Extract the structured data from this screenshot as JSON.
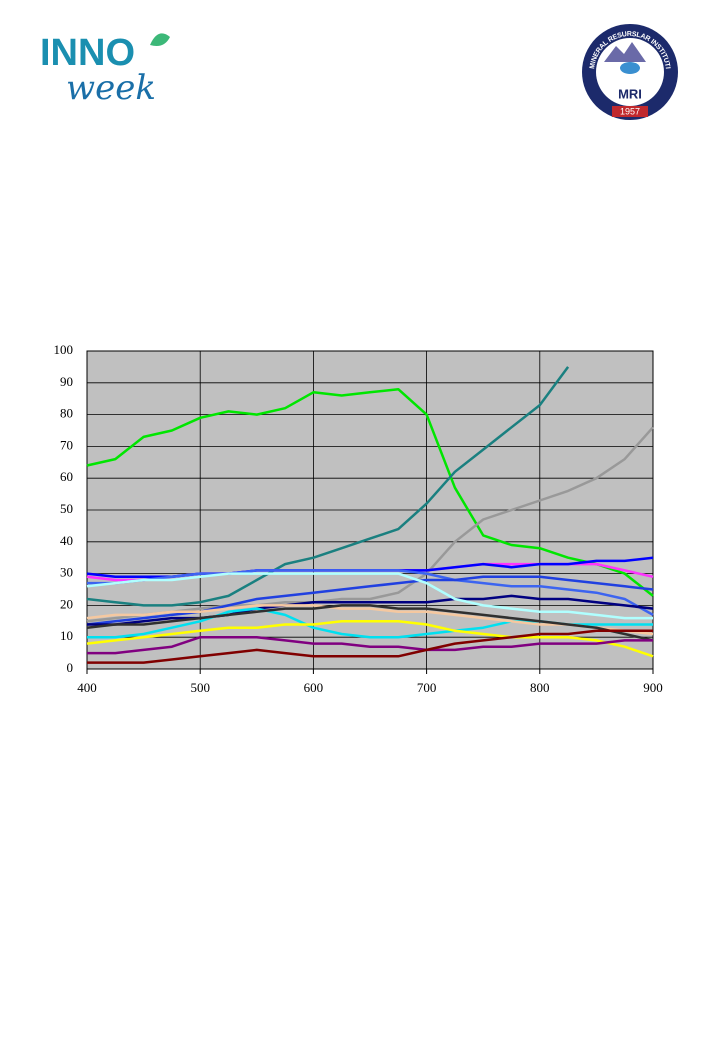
{
  "header": {
    "left_logo": {
      "line1": "INNO",
      "line2": "week"
    },
    "right_logo": {
      "ring_text": "MINERAL RESURSLAR INSTITUTI",
      "abbr": "MRI",
      "year": "1957"
    }
  },
  "chart_data": {
    "type": "line",
    "x": [
      400,
      425,
      450,
      475,
      500,
      525,
      550,
      575,
      600,
      625,
      650,
      675,
      700,
      725,
      750,
      775,
      800,
      825,
      850,
      875,
      900
    ],
    "xlim": [
      400,
      900
    ],
    "xticks": [
      400,
      500,
      600,
      700,
      800,
      900
    ],
    "ylim": [
      0,
      100
    ],
    "yticks": [
      0,
      10,
      20,
      30,
      40,
      50,
      60,
      70,
      80,
      90,
      100
    ],
    "grid": true,
    "plot_background": "#c0c0c0",
    "series": [
      {
        "color": "#00e600",
        "values": [
          64,
          66,
          73,
          75,
          79,
          81,
          80,
          82,
          87,
          86,
          87,
          88,
          80,
          57,
          42,
          39,
          38,
          35,
          33,
          30,
          23
        ]
      },
      {
        "color": "#1a8080",
        "values": [
          22,
          21,
          20,
          20,
          21,
          23,
          28,
          33,
          35,
          38,
          41,
          44,
          52,
          62,
          69,
          76,
          83,
          95,
          null,
          null,
          null
        ]
      },
      {
        "color": "#999999",
        "values": [
          15,
          16,
          17,
          18,
          19,
          20,
          20,
          21,
          21,
          22,
          22,
          24,
          30,
          40,
          47,
          50,
          53,
          56,
          60,
          66,
          76
        ]
      },
      {
        "color": "#ff33ff",
        "values": [
          29,
          28,
          28,
          29,
          30,
          30,
          31,
          31,
          31,
          31,
          31,
          31,
          31,
          32,
          33,
          33,
          33,
          33,
          33,
          31,
          29
        ]
      },
      {
        "color": "#0000ff",
        "values": [
          30,
          29,
          29,
          29,
          30,
          30,
          31,
          31,
          31,
          31,
          31,
          31,
          31,
          32,
          33,
          32,
          33,
          33,
          34,
          34,
          35
        ]
      },
      {
        "color": "#3c64f0",
        "values": [
          27,
          27,
          28,
          29,
          30,
          30,
          31,
          31,
          31,
          31,
          31,
          31,
          30,
          28,
          27,
          26,
          26,
          25,
          24,
          22,
          17
        ]
      },
      {
        "color": "#2040e0",
        "values": [
          14,
          15,
          16,
          17,
          18,
          20,
          22,
          23,
          24,
          25,
          26,
          27,
          28,
          28,
          29,
          29,
          29,
          28,
          27,
          26,
          25
        ]
      },
      {
        "color": "#000080",
        "values": [
          14,
          14,
          15,
          16,
          16,
          17,
          19,
          20,
          21,
          21,
          21,
          21,
          21,
          22,
          22,
          23,
          22,
          22,
          21,
          20,
          19
        ]
      },
      {
        "color": "#b0ffff",
        "values": [
          26,
          27,
          28,
          28,
          29,
          30,
          30,
          30,
          30,
          30,
          30,
          30,
          27,
          22,
          20,
          19,
          18,
          18,
          17,
          16,
          16
        ]
      },
      {
        "color": "#00e0f0",
        "values": [
          10,
          10,
          11,
          13,
          15,
          18,
          19,
          17,
          13,
          11,
          10,
          10,
          11,
          12,
          13,
          15,
          15,
          14,
          14,
          14,
          14
        ]
      },
      {
        "color": "#f5c8a0",
        "values": [
          16,
          17,
          17,
          18,
          18,
          19,
          20,
          20,
          20,
          19,
          19,
          18,
          18,
          17,
          16,
          15,
          14,
          14,
          13,
          12,
          11
        ]
      },
      {
        "color": "#ffff00",
        "values": [
          8,
          9,
          10,
          11,
          12,
          13,
          13,
          14,
          14,
          15,
          15,
          15,
          14,
          12,
          11,
          10,
          10,
          10,
          9,
          7,
          4
        ]
      },
      {
        "color": "#303030",
        "values": [
          13,
          14,
          14,
          15,
          16,
          17,
          18,
          19,
          19,
          20,
          20,
          19,
          19,
          18,
          17,
          16,
          15,
          14,
          13,
          11,
          9
        ]
      },
      {
        "color": "#800080",
        "values": [
          5,
          5,
          6,
          7,
          10,
          10,
          10,
          9,
          8,
          8,
          7,
          7,
          6,
          6,
          7,
          7,
          8,
          8,
          8,
          9,
          9
        ]
      },
      {
        "color": "#800000",
        "values": [
          2,
          2,
          2,
          3,
          4,
          5,
          6,
          5,
          4,
          4,
          4,
          4,
          6,
          8,
          9,
          10,
          11,
          11,
          12,
          12,
          12
        ]
      }
    ]
  }
}
